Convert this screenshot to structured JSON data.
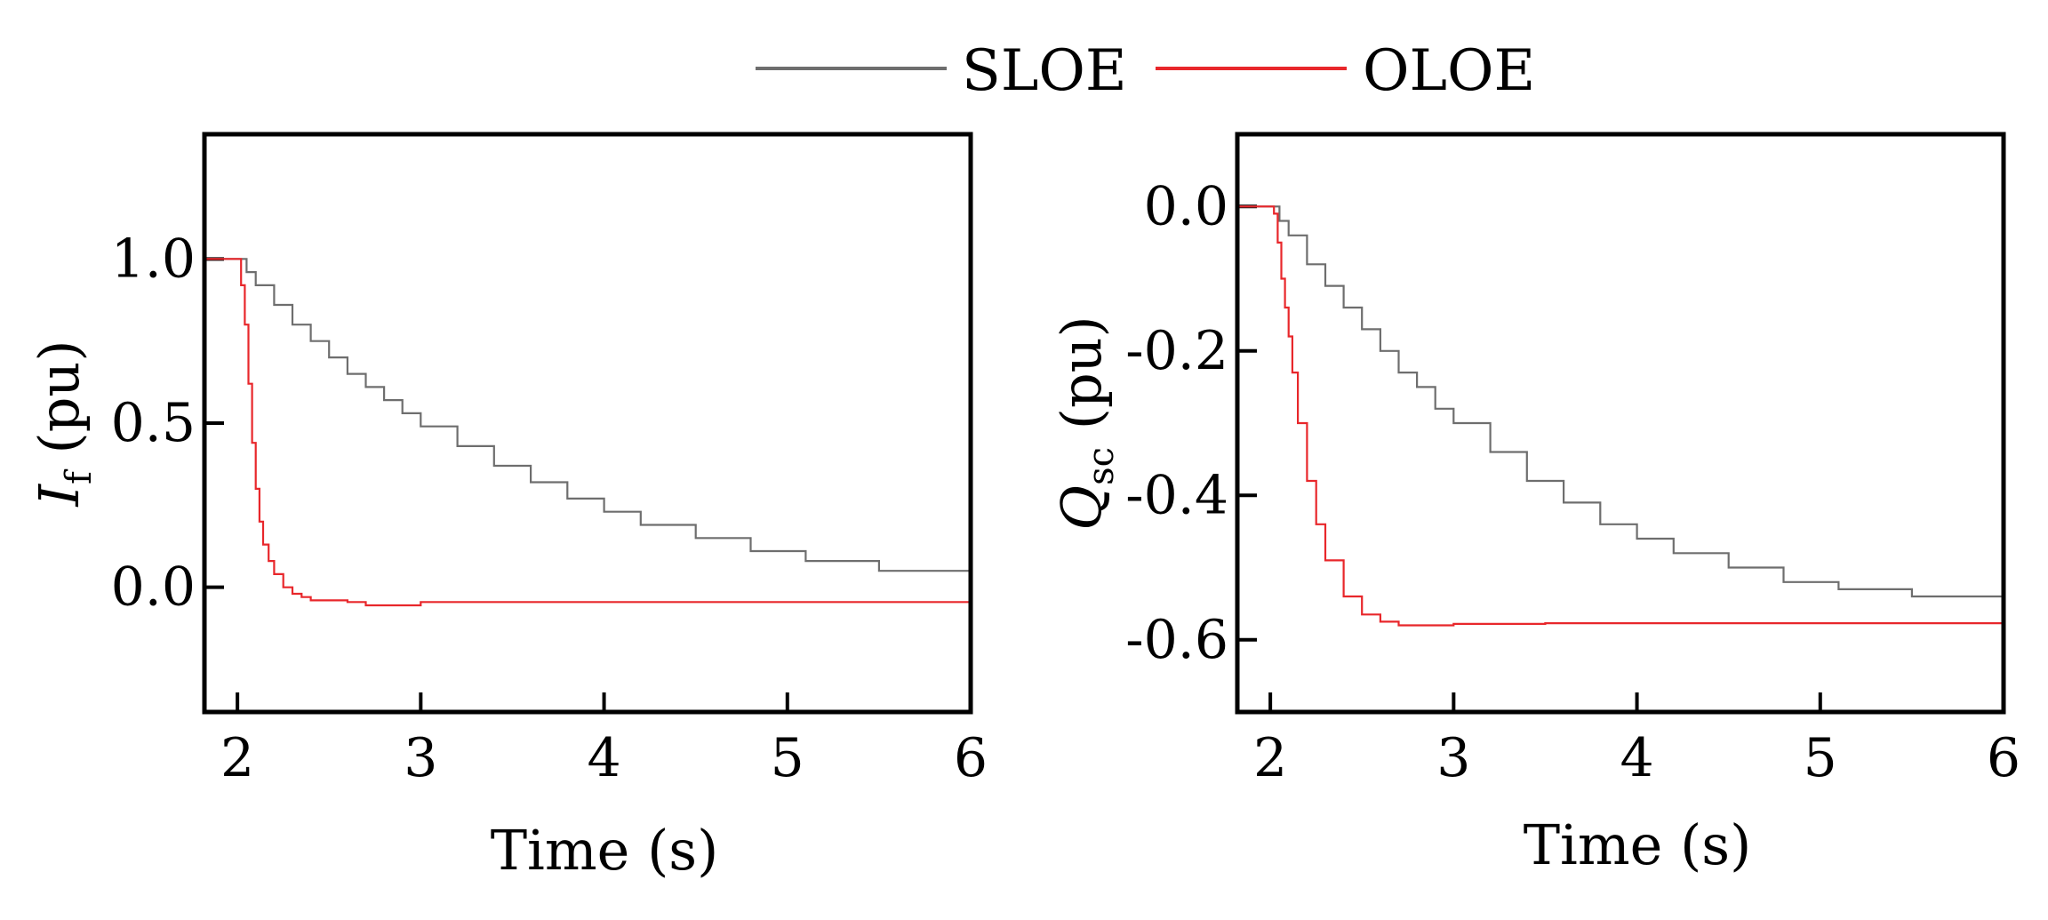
{
  "legend": {
    "entries": [
      {
        "label": "SLOE",
        "color": "#6e6e6e"
      },
      {
        "label": "OLOE",
        "color": "#e8272b"
      }
    ]
  },
  "chart_data": [
    {
      "type": "line",
      "title": "",
      "xlabel": "Time (s)",
      "ylabel_symbol": "I",
      "ylabel_subscript": "f",
      "ylabel_unit": "(pu)",
      "xlim": [
        1.82,
        6.0
      ],
      "ylim": [
        -0.38,
        1.38
      ],
      "xticks": [
        2,
        3,
        4,
        5,
        6
      ],
      "xtick_labels": [
        "2",
        "3",
        "4",
        "5",
        "6"
      ],
      "yticks": [
        0.0,
        0.5,
        1.0
      ],
      "ytick_labels": [
        "0.0",
        "0.5",
        "1.0"
      ],
      "series": [
        {
          "name": "SLOE",
          "color": "#6e6e6e",
          "x": [
            1.82,
            2.0,
            2.05,
            2.1,
            2.2,
            2.3,
            2.4,
            2.5,
            2.6,
            2.7,
            2.8,
            2.9,
            3.0,
            3.2,
            3.4,
            3.6,
            3.8,
            4.0,
            4.2,
            4.5,
            4.8,
            5.1,
            5.5,
            6.0
          ],
          "values": [
            1.0,
            1.0,
            0.96,
            0.92,
            0.86,
            0.8,
            0.75,
            0.7,
            0.65,
            0.61,
            0.57,
            0.53,
            0.49,
            0.43,
            0.37,
            0.32,
            0.27,
            0.23,
            0.19,
            0.15,
            0.11,
            0.08,
            0.05,
            0.02
          ]
        },
        {
          "name": "OLOE",
          "color": "#e8272b",
          "x": [
            1.82,
            2.0,
            2.02,
            2.04,
            2.06,
            2.08,
            2.1,
            2.12,
            2.14,
            2.17,
            2.2,
            2.25,
            2.3,
            2.35,
            2.4,
            2.6,
            2.7,
            2.8,
            3.0,
            3.5,
            4.0,
            5.0,
            6.0
          ],
          "values": [
            1.0,
            1.0,
            0.92,
            0.8,
            0.62,
            0.44,
            0.3,
            0.2,
            0.13,
            0.08,
            0.04,
            0.0,
            -0.02,
            -0.03,
            -0.04,
            -0.045,
            -0.055,
            -0.055,
            -0.045,
            -0.045,
            -0.045,
            -0.045,
            -0.045
          ]
        }
      ]
    },
    {
      "type": "line",
      "title": "",
      "xlabel": "Time (s)",
      "ylabel_symbol": "Q",
      "ylabel_subscript": "sc",
      "ylabel_unit": "(pu)",
      "xlim": [
        1.82,
        6.0
      ],
      "ylim": [
        -0.7,
        0.1
      ],
      "xticks": [
        2,
        3,
        4,
        5,
        6
      ],
      "xtick_labels": [
        "2",
        "3",
        "4",
        "5",
        "6"
      ],
      "yticks": [
        0.0,
        -0.2,
        -0.4,
        -0.6
      ],
      "ytick_labels": [
        "0.0",
        "-0.2",
        "-0.4",
        "-0.6"
      ],
      "series": [
        {
          "name": "SLOE",
          "color": "#6e6e6e",
          "x": [
            1.82,
            2.0,
            2.05,
            2.1,
            2.2,
            2.3,
            2.4,
            2.5,
            2.6,
            2.7,
            2.8,
            2.9,
            3.0,
            3.2,
            3.4,
            3.6,
            3.8,
            4.0,
            4.2,
            4.5,
            4.8,
            5.1,
            5.5,
            6.0
          ],
          "values": [
            0.0,
            0.0,
            -0.02,
            -0.04,
            -0.08,
            -0.11,
            -0.14,
            -0.17,
            -0.2,
            -0.23,
            -0.25,
            -0.28,
            -0.3,
            -0.34,
            -0.38,
            -0.41,
            -0.44,
            -0.46,
            -0.48,
            -0.5,
            -0.52,
            -0.53,
            -0.54,
            -0.55
          ]
        },
        {
          "name": "OLOE",
          "color": "#e8272b",
          "x": [
            1.82,
            2.0,
            2.02,
            2.04,
            2.06,
            2.08,
            2.1,
            2.12,
            2.15,
            2.2,
            2.25,
            2.3,
            2.4,
            2.5,
            2.6,
            2.7,
            3.0,
            3.5,
            4.0,
            5.0,
            6.0
          ],
          "values": [
            0.0,
            0.0,
            -0.01,
            -0.05,
            -0.1,
            -0.14,
            -0.18,
            -0.23,
            -0.3,
            -0.38,
            -0.44,
            -0.49,
            -0.54,
            -0.565,
            -0.575,
            -0.58,
            -0.578,
            -0.577,
            -0.577,
            -0.577,
            -0.577
          ]
        }
      ]
    }
  ]
}
